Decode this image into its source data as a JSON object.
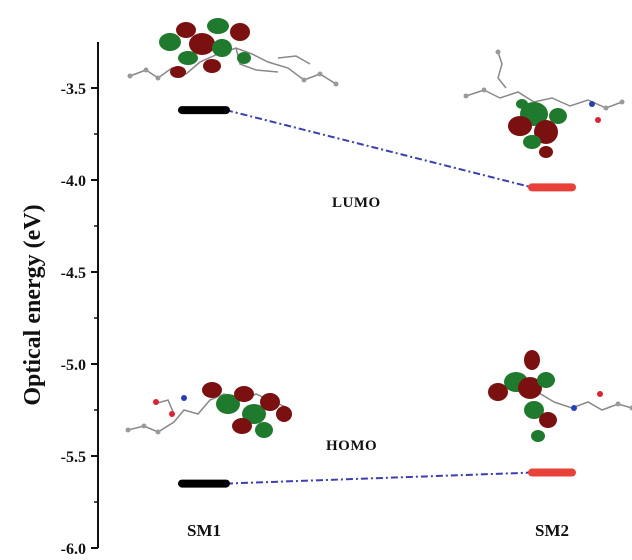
{
  "chart_data": {
    "type": "line",
    "ylabel": "Optical energy (eV)",
    "ylim": [
      -6.0,
      -3.2
    ],
    "yticks": [
      -3.5,
      -4.0,
      -4.5,
      -5.0,
      -5.5,
      -6.0
    ],
    "ytick_labels": [
      "-3.5",
      "-4.0",
      "-4.5",
      "-5.0",
      "-5.5",
      "-6.0"
    ],
    "categories": [
      "SM1",
      "SM2"
    ],
    "grid": false,
    "series": [
      {
        "name": "LUMO",
        "values": [
          -3.62,
          -4.04
        ]
      },
      {
        "name": "HOMO",
        "values": [
          -5.65,
          -5.59
        ]
      }
    ],
    "annotations": [
      "LUMO",
      "HOMO"
    ],
    "colors": {
      "SM1": "#000000",
      "SM2": "#e8413a",
      "connector": "#3b3fb0",
      "orbital_positive": "#1f7a2e",
      "orbital_negative": "#7a1010"
    }
  }
}
